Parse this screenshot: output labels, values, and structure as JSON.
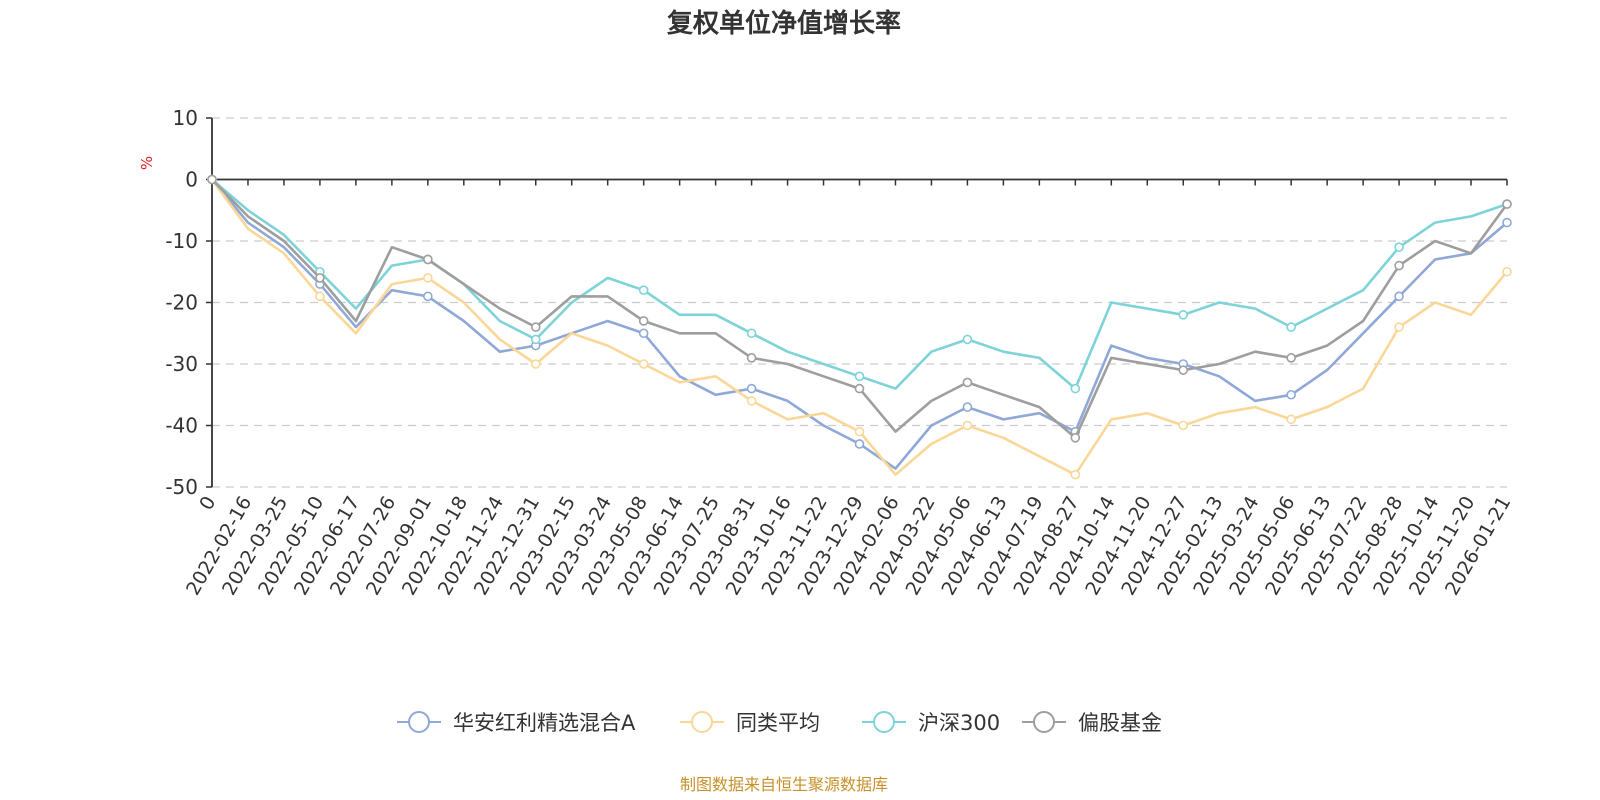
{
  "chart_data": {
    "type": "line",
    "title": "复权单位净值增长率",
    "ylabel": "%",
    "ylim": [
      -50,
      10
    ],
    "yticks": [
      10,
      0,
      -10,
      -20,
      -30,
      -40,
      -50
    ],
    "x_labels": [
      "0",
      "2022-02-16",
      "2022-03-25",
      "2022-05-10",
      "2022-06-17",
      "2022-07-26",
      "2022-09-01",
      "2022-10-18",
      "2022-11-24",
      "2022-12-31",
      "2023-02-15",
      "2023-03-24",
      "2023-05-08",
      "2023-06-14",
      "2023-07-25",
      "2023-08-31",
      "2023-10-16",
      "2023-11-22",
      "2023-12-29",
      "2024-02-06",
      "2024-03-22",
      "2024-05-06",
      "2024-06-13",
      "2024-07-19",
      "2024-08-27",
      "2024-10-14",
      "2024-11-20",
      "2024-12-27",
      "2025-02-13",
      "2025-03-24",
      "2025-05-06",
      "2025-06-13",
      "2025-07-22",
      "2025-08-28",
      "2025-10-14",
      "2025-11-20",
      "2026-01-21"
    ],
    "series": [
      {
        "name": "华安红利精选混合A",
        "color": "#8fa8d8",
        "values": [
          0,
          -7,
          -11,
          -17,
          -24,
          -18,
          -19,
          -23,
          -28,
          -27,
          -25,
          -23,
          -25,
          -32,
          -35,
          -34,
          -36,
          -40,
          -43,
          -47,
          -40,
          -37,
          -39,
          -38,
          -41,
          -27,
          -29,
          -30,
          -32,
          -36,
          -35,
          -31,
          -25,
          -19,
          -13,
          -12,
          -7
        ]
      },
      {
        "name": "同类平均",
        "color": "#fad797",
        "values": [
          0,
          -8,
          -12,
          -19,
          -25,
          -17,
          -16,
          -20,
          -26,
          -30,
          -25,
          -27,
          -30,
          -33,
          -32,
          -36,
          -39,
          -38,
          -41,
          -48,
          -43,
          -40,
          -42,
          -45,
          -48,
          -39,
          -38,
          -40,
          -38,
          -37,
          -39,
          -37,
          -34,
          -24,
          -20,
          -22,
          -15
        ]
      },
      {
        "name": "沪深300",
        "color": "#7dd3d8",
        "values": [
          0,
          -5,
          -9,
          -15,
          -21,
          -14,
          -13,
          -17,
          -23,
          -26,
          -20,
          -16,
          -18,
          -22,
          -22,
          -25,
          -28,
          -30,
          -32,
          -34,
          -28,
          -26,
          -28,
          -29,
          -34,
          -20,
          -21,
          -22,
          -20,
          -21,
          -24,
          -21,
          -18,
          -11,
          -7,
          -6,
          -4
        ]
      },
      {
        "name": "偏股基金",
        "color": "#9e9e9e",
        "values": [
          0,
          -6,
          -10,
          -16,
          -23,
          -11,
          -13,
          -17,
          -21,
          -24,
          -19,
          -19,
          -23,
          -25,
          -25,
          -29,
          -30,
          -32,
          -34,
          -41,
          -36,
          -33,
          -35,
          -37,
          -42,
          -29,
          -30,
          -31,
          -30,
          -28,
          -29,
          -27,
          -23,
          -14,
          -10,
          -12,
          -4
        ]
      }
    ]
  },
  "source_note": "制图数据来自恒生聚源数据库"
}
